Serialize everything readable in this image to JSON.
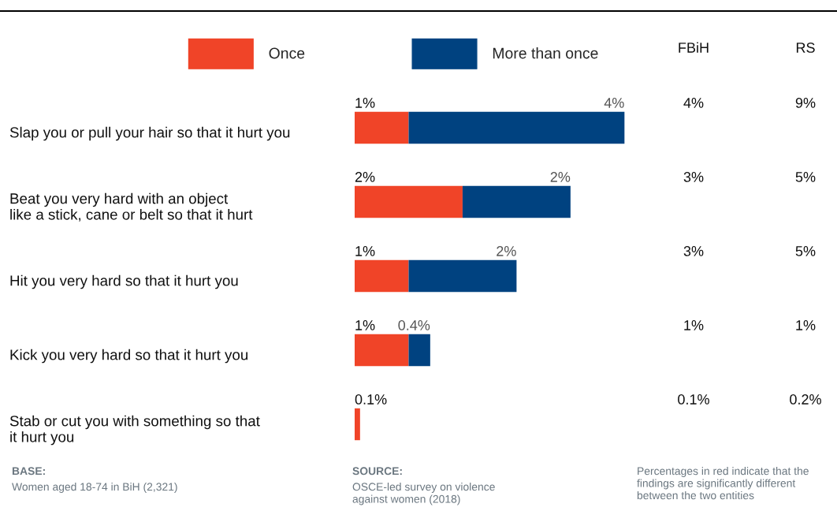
{
  "chart_data": {
    "type": "bar",
    "orientation": "horizontal",
    "stacked": true,
    "legend": "top",
    "categories": [
      "Slap you or pull your hair so that it hurt you",
      "Beat you very hard with an object\nlike a stick, cane or belt so that it hurt",
      "Hit you very hard so that it hurt you",
      "Kick you very hard so that it hurt you",
      "Stab or cut you with something so that\nit hurt you"
    ],
    "series": [
      {
        "name": "Once",
        "color": "#f04428",
        "values": [
          1,
          2,
          1,
          1,
          0.1
        ],
        "value_labels": [
          "1%",
          "2%",
          "1%",
          "1%",
          "0.1%"
        ]
      },
      {
        "name": "More than once",
        "color": "#004280",
        "values": [
          4,
          2,
          2,
          0.4,
          null
        ],
        "value_labels": [
          "4%",
          "2%",
          "2%",
          "0.4%",
          null
        ]
      }
    ],
    "annotations": [
      "FBiH",
      "RS",
      "4%",
      "9%",
      "3%",
      "5%",
      "3%",
      "5%",
      "1%",
      "1%",
      "0.1%",
      "0.2%",
      "BASE:\nWomen aged 18-74 in BiH (2,321)",
      "SOURCE:\nOSCE-led survey on violence\nagainst women (2018)",
      "Percentages in red indicate that the\nfindings are significantly different\nbetween the two entities"
    ]
  }
}
